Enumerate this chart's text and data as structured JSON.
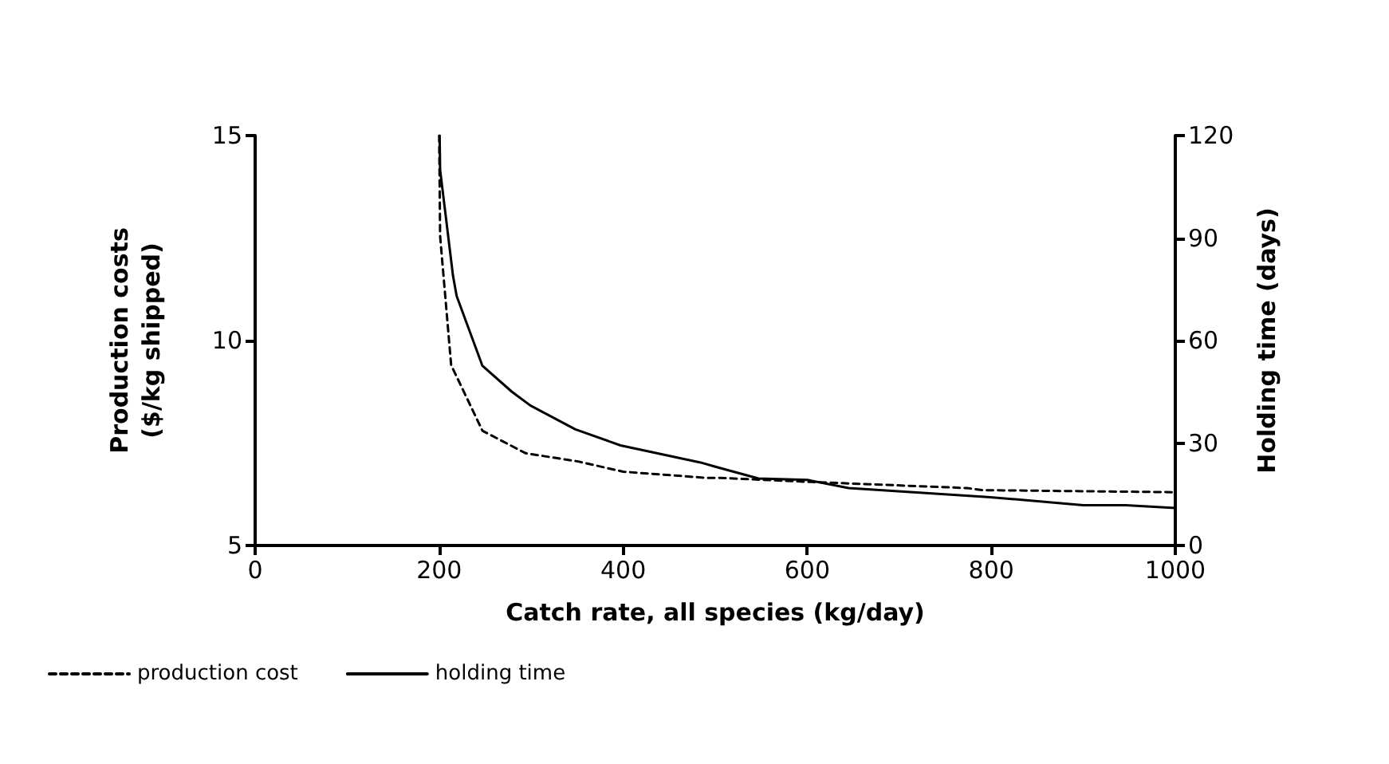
{
  "chart_data": {
    "type": "line",
    "xlabel": "Catch rate, all species (kg/day)",
    "ylabel": "Production costs\n($/kg shipped)",
    "y2label": "Holding time (days)",
    "xlim": [
      0,
      1000
    ],
    "xticks": [
      0,
      200,
      400,
      600,
      800,
      1000
    ],
    "ylim": [
      5,
      15
    ],
    "yticks": [
      5,
      10,
      15
    ],
    "y2lim": [
      0,
      120
    ],
    "y2ticks": [
      0,
      30,
      60,
      90,
      120
    ],
    "grid": false,
    "legend": "bottom",
    "marker": "none",
    "series": [
      {
        "name": "production cost",
        "color": "#000000",
        "line_style": "dashed",
        "axis": "y",
        "x": [
          200,
          201,
          213,
          247,
          294,
          351,
          400,
          490,
          504,
          604,
          774,
          791,
          1000
        ],
        "values": [
          15,
          12.55,
          9.4,
          7.8,
          7.25,
          7.05,
          6.8,
          6.65,
          6.65,
          6.55,
          6.4,
          6.35,
          6.3
        ]
      },
      {
        "name": "holding time",
        "color": "#000000",
        "line_style": "solid",
        "axis": "y2",
        "x": [
          200.5,
          201,
          215,
          219,
          247,
          279,
          299,
          348,
          397,
          484,
          501,
          547,
          600,
          645,
          796,
          900,
          946,
          1000
        ],
        "values": [
          120,
          110,
          79,
          73,
          52.6,
          45,
          41,
          34,
          29.3,
          24.3,
          23,
          19.6,
          19.2,
          16.8,
          14.2,
          11.8,
          11.8,
          11
        ]
      }
    ]
  }
}
